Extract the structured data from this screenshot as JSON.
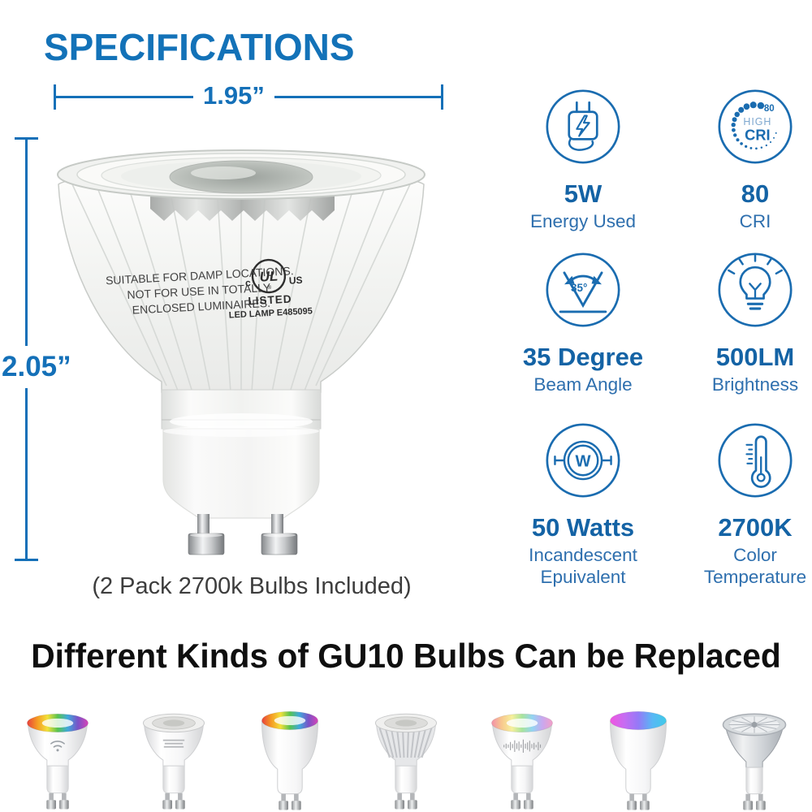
{
  "colors": {
    "accent": "#1372b8",
    "icon_blue": "#1a6cb0",
    "value_blue": "#1463a5",
    "label_blue": "#2e6fae",
    "heading_black": "#0f0f0f",
    "caption_gray": "#3d3d3d"
  },
  "header": {
    "title": "SPECIFICATIONS"
  },
  "product": {
    "width_label": "1.95”",
    "height_label": "2.05”",
    "print": [
      "SUITABLE FOR DAMP LOCATIONS.",
      "NOT FOR USE IN TOTALLY",
      "ENCLOSED LUMINAIRES."
    ],
    "ul": {
      "c": "c",
      "mark": "UL",
      "reg": "®",
      "us": "US",
      "listed": "LISTED",
      "lamp": "LED LAMP E485095"
    },
    "caption": "(2  Pack 2700k Bulbs Included)"
  },
  "specs": [
    {
      "icon": "charger-icon",
      "value": "5W",
      "label": "Energy Used"
    },
    {
      "icon": "high-cri-icon",
      "value": "80",
      "label": "CRI",
      "icon_num": "80",
      "icon_high": "HIGH",
      "icon_cri": "CRI"
    },
    {
      "icon": "beam-angle-icon",
      "value": "35 Degree",
      "label": "Beam Angle",
      "icon_text": "35°"
    },
    {
      "icon": "light-bulb-icon",
      "value": "500LM",
      "label": "Brightness"
    },
    {
      "icon": "watt-icon",
      "value": "50 Watts",
      "label": "Incandescent\nEpuivalent",
      "icon_text": "W"
    },
    {
      "icon": "thermometer-icon",
      "value": "2700K",
      "label": "Color\nTemperature"
    }
  ],
  "bottom": {
    "heading": "Different Kinds of GU10 Bulbs Can be Replaced",
    "bulbs": [
      {
        "name": "smart-rgb-wifi-bulb",
        "shape": "cup",
        "top": "rainbow",
        "deco": "wifi",
        "white_center": true
      },
      {
        "name": "led-lens-print-bulb",
        "shape": "cup",
        "top": "lens",
        "deco": "text",
        "white_center": false
      },
      {
        "name": "smart-rgb-tall-bulb",
        "shape": "tall",
        "top": "rainbow",
        "deco": "none",
        "white_center": true
      },
      {
        "name": "ribbed-led-lens-bulb",
        "shape": "ribbed",
        "top": "lens",
        "deco": "none",
        "white_center": false
      },
      {
        "name": "smart-rgb-soundwave-bulb",
        "shape": "cup",
        "top": "pastel",
        "deco": "soundwave",
        "white_center": true
      },
      {
        "name": "smart-rgb-gradient-bulb",
        "shape": "tall",
        "top": "magenta-cyan",
        "deco": "none",
        "white_center": false
      },
      {
        "name": "halogen-reflector-bulb",
        "shape": "halogen",
        "top": "silver",
        "deco": "none",
        "white_center": false
      }
    ],
    "palettes": {
      "rainbow": [
        "#e8413c",
        "#f59b23",
        "#f3e13a",
        "#58c34f",
        "#3fa9dc",
        "#7a52c7",
        "#d643b8"
      ],
      "pastel": [
        "#f290a8",
        "#f8c98e",
        "#f6f09c",
        "#a8e49c",
        "#93d4f2",
        "#c9a8ef",
        "#f2a0c8"
      ],
      "magenta-cyan": [
        "#f055e0",
        "#c76df2",
        "#9579f7",
        "#58b7f5",
        "#40cbe8"
      ]
    }
  }
}
